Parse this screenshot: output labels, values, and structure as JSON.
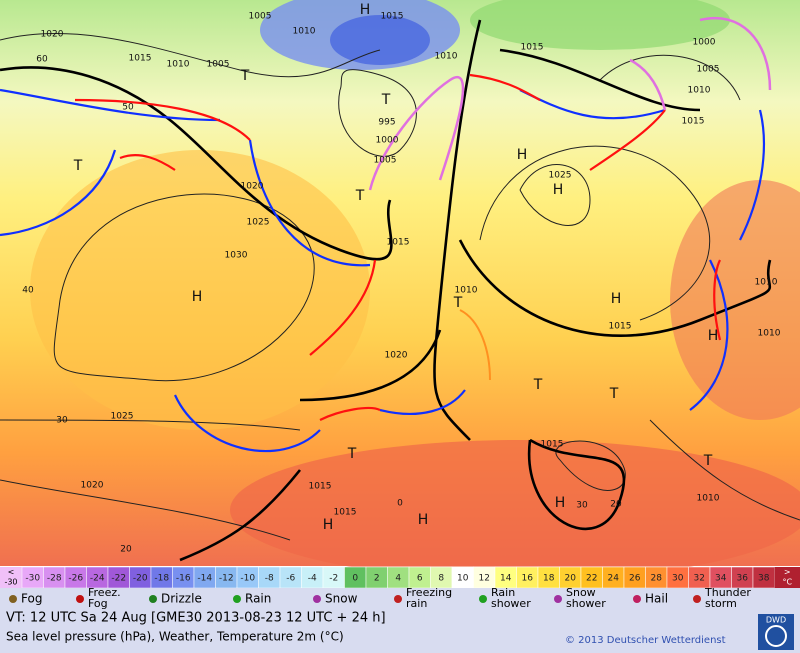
{
  "map": {
    "labels": [
      "H",
      "1015",
      "1010",
      "1005",
      "1020",
      "1015",
      "1010",
      "1005",
      "T",
      "T",
      "995",
      "1000",
      "1005",
      "1010",
      "1015",
      "H",
      "1025",
      "H",
      "1020",
      "1025",
      "1030",
      "H",
      "1015",
      "1010",
      "T",
      "1020",
      "H",
      "1015",
      "1025",
      "1020",
      "T",
      "H",
      "1015",
      "1015",
      "H",
      "H",
      "1015",
      "1010",
      "T",
      "1010",
      "H",
      "T",
      "T",
      "1005",
      "1010",
      "1015",
      "1000",
      "T",
      "T",
      "20",
      "30",
      "40",
      "30",
      "0",
      "20",
      "60",
      "50",
      "1010"
    ]
  },
  "scale": {
    "low_label": [
      "<",
      "-30"
    ],
    "high_label": [
      ">",
      "°C"
    ],
    "values": [
      -30,
      -28,
      -26,
      -24,
      -22,
      -20,
      -18,
      -16,
      -14,
      -12,
      -10,
      -8,
      -6,
      -4,
      -2,
      0,
      2,
      4,
      6,
      8,
      10,
      12,
      14,
      16,
      18,
      20,
      22,
      24,
      26,
      28,
      30,
      32,
      34,
      36,
      38
    ],
    "colors": [
      "#e8a8f8",
      "#d890f0",
      "#c878e8",
      "#b868e0",
      "#a058d8",
      "#8060e0",
      "#7078e8",
      "#7890f0",
      "#80a8f0",
      "#88b8f0",
      "#98c8f8",
      "#a8d8f8",
      "#b8e4f8",
      "#c8f0f8",
      "#d8f8f8",
      "#60c060",
      "#80d070",
      "#a0e080",
      "#c0f090",
      "#e0f8b0",
      "#ffffff",
      "#ffffe0",
      "#ffff80",
      "#fff060",
      "#ffe040",
      "#ffd030",
      "#ffc020",
      "#ffb020",
      "#ffa020",
      "#ff9030",
      "#ff7040",
      "#f06050",
      "#e05060",
      "#d04050",
      "#c03040"
    ]
  },
  "legend": [
    "Fog",
    "Freez. Fog",
    "Drizzle",
    "Rain",
    "Snow",
    "Freezing rain",
    "Rain shower",
    "Snow shower",
    "Hail",
    "Thunder storm"
  ],
  "footer": {
    "valid": "VT: 12 UTC Sa  24 Aug [GME30 2013-08-23  12 UTC + 24 h]",
    "subtitle": "Sea level pressure (hPa), Weather, Temperature 2m (°C)",
    "copyright": "© 2013 Deutscher Wetterdienst",
    "logo": "DWD"
  }
}
